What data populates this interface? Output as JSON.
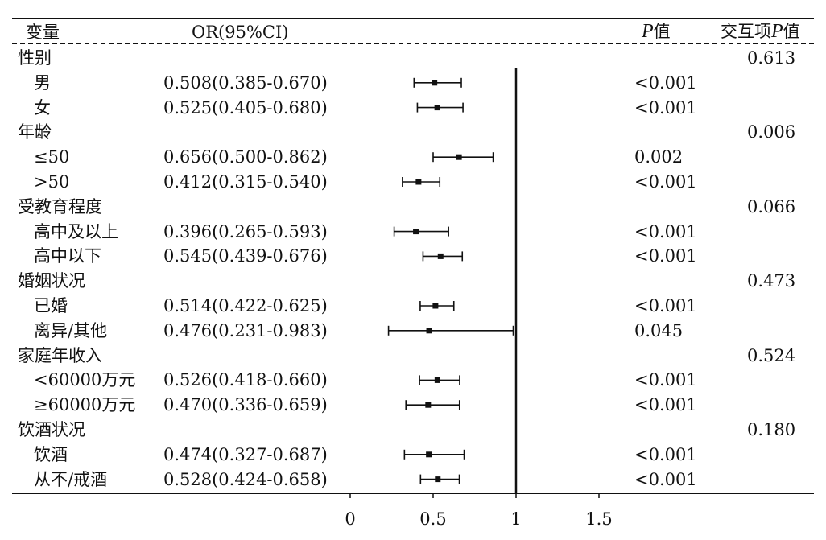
{
  "header": {
    "variable": "变量",
    "or_ci": "OR(95%CI)",
    "p_letter": "P",
    "p_suffix": "值",
    "interaction_prefix": "交互项",
    "interaction_p_letter": "P",
    "interaction_suffix": "值"
  },
  "chart_data": {
    "type": "forest",
    "reference_line": 1,
    "x_ticks": [
      "0",
      "0.5",
      "1",
      "1.5"
    ],
    "xlim": [
      0,
      1.5
    ],
    "rows": [
      {
        "label": "性别",
        "group": true,
        "interaction_p": "0.613"
      },
      {
        "label": "男",
        "or_text": "0.508(0.385-0.670)",
        "or": 0.508,
        "lo": 0.385,
        "hi": 0.67,
        "p": "<0.001"
      },
      {
        "label": "女",
        "or_text": "0.525(0.405-0.680)",
        "or": 0.525,
        "lo": 0.405,
        "hi": 0.68,
        "p": "<0.001"
      },
      {
        "label": "年龄",
        "group": true,
        "interaction_p": "0.006"
      },
      {
        "label": "≤50",
        "or_text": "0.656(0.500-0.862)",
        "or": 0.656,
        "lo": 0.5,
        "hi": 0.862,
        "p": "0.002"
      },
      {
        "label": ">50",
        "or_text": "0.412(0.315-0.540)",
        "or": 0.412,
        "lo": 0.315,
        "hi": 0.54,
        "p": "<0.001"
      },
      {
        "label": "受教育程度",
        "group": true,
        "interaction_p": "0.066"
      },
      {
        "label": "高中及以上",
        "or_text": "0.396(0.265-0.593)",
        "or": 0.396,
        "lo": 0.265,
        "hi": 0.593,
        "p": "<0.001"
      },
      {
        "label": "高中以下",
        "or_text": "0.545(0.439-0.676)",
        "or": 0.545,
        "lo": 0.439,
        "hi": 0.676,
        "p": "<0.001"
      },
      {
        "label": "婚姻状况",
        "group": true,
        "interaction_p": "0.473"
      },
      {
        "label": "已婚",
        "or_text": "0.514(0.422-0.625)",
        "or": 0.514,
        "lo": 0.422,
        "hi": 0.625,
        "p": "<0.001"
      },
      {
        "label": "离异/其他",
        "or_text": "0.476(0.231-0.983)",
        "or": 0.476,
        "lo": 0.231,
        "hi": 0.983,
        "p": "0.045"
      },
      {
        "label": "家庭年收入",
        "group": true,
        "interaction_p": "0.524"
      },
      {
        "label": "<60000万元",
        "or_text": "0.526(0.418-0.660)",
        "or": 0.526,
        "lo": 0.418,
        "hi": 0.66,
        "p": "<0.001"
      },
      {
        "label": "≥60000万元",
        "or_text": "0.470(0.336-0.659)",
        "or": 0.47,
        "lo": 0.336,
        "hi": 0.659,
        "p": "<0.001"
      },
      {
        "label": "饮酒状况",
        "group": true,
        "interaction_p": "0.180"
      },
      {
        "label": "饮酒",
        "or_text": "0.474(0.327-0.687)",
        "or": 0.474,
        "lo": 0.327,
        "hi": 0.687,
        "p": "<0.001"
      },
      {
        "label": "从不/戒酒",
        "or_text": "0.528(0.424-0.658)",
        "or": 0.528,
        "lo": 0.424,
        "hi": 0.658,
        "p": "<0.001"
      }
    ]
  }
}
